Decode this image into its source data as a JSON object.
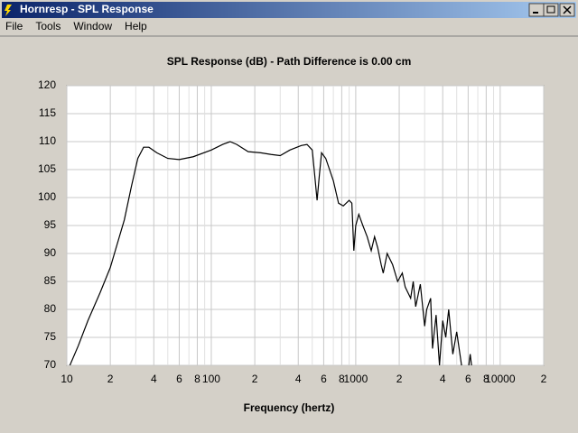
{
  "window": {
    "title": "Hornresp - SPL Response"
  },
  "menu": [
    "File",
    "Tools",
    "Window",
    "Help"
  ],
  "chart_data": {
    "type": "line",
    "title": "SPL Response (dB) - Path Difference is 0.00 cm",
    "x_label": "Frequency (hertz)",
    "x_scale": "log",
    "grid": true,
    "color": "#000000",
    "xlim": [
      10,
      20000
    ],
    "ylim": [
      70,
      120
    ],
    "xticks": [
      10,
      {
        "value": 20,
        "label": "2"
      },
      {
        "value": 40,
        "label": "4"
      },
      {
        "value": 60,
        "label": "6"
      },
      {
        "value": 80,
        "label": "8"
      },
      100,
      {
        "value": 200,
        "label": "2"
      },
      {
        "value": 400,
        "label": "4"
      },
      {
        "value": 600,
        "label": "6"
      },
      {
        "value": 800,
        "label": "8"
      },
      1000,
      {
        "value": 2000,
        "label": "2"
      },
      {
        "value": 4000,
        "label": "4"
      },
      {
        "value": 6000,
        "label": "6"
      },
      {
        "value": 8000,
        "label": "8"
      },
      10000,
      {
        "value": 20000,
        "label": "2"
      }
    ],
    "x_minor_ticks": [
      30,
      50,
      70,
      90,
      300,
      500,
      700,
      900,
      3000,
      5000,
      7000,
      9000
    ],
    "yticks": [
      70,
      75,
      80,
      85,
      90,
      95,
      100,
      105,
      110,
      115,
      120
    ],
    "x": [
      10.5,
      12,
      14,
      17,
      20,
      25,
      28,
      31,
      34,
      37,
      42,
      50,
      60,
      75,
      100,
      120,
      135,
      150,
      180,
      220,
      260,
      300,
      350,
      420,
      460,
      500,
      520,
      540,
      560,
      580,
      620,
      700,
      760,
      820,
      900,
      940,
      970,
      1000,
      1050,
      1120,
      1200,
      1280,
      1350,
      1420,
      1500,
      1550,
      1650,
      1800,
      1950,
      2100,
      2200,
      2400,
      2500,
      2600,
      2800,
      3000,
      3100,
      3300,
      3400,
      3600,
      3800,
      4000,
      4200,
      4400,
      4700,
      5000,
      5400,
      6000,
      6200,
      6400
    ],
    "values": [
      70,
      73.5,
      78,
      83,
      87.5,
      96,
      102,
      107,
      109,
      109,
      108,
      107,
      106.8,
      107.3,
      108.5,
      109.5,
      110,
      109.5,
      108.2,
      108,
      107.7,
      107.5,
      108.5,
      109.3,
      109.5,
      108.5,
      104,
      99.5,
      104,
      108,
      107,
      103,
      99,
      98.5,
      99.5,
      99,
      90.5,
      95,
      97,
      95,
      93,
      90.5,
      93,
      91,
      88,
      86.5,
      90,
      88,
      85,
      86.5,
      84,
      82,
      85,
      80.5,
      84.5,
      77,
      80,
      82,
      73,
      79,
      70,
      78,
      75,
      80,
      72,
      76,
      70,
      69,
      72,
      69
    ]
  }
}
